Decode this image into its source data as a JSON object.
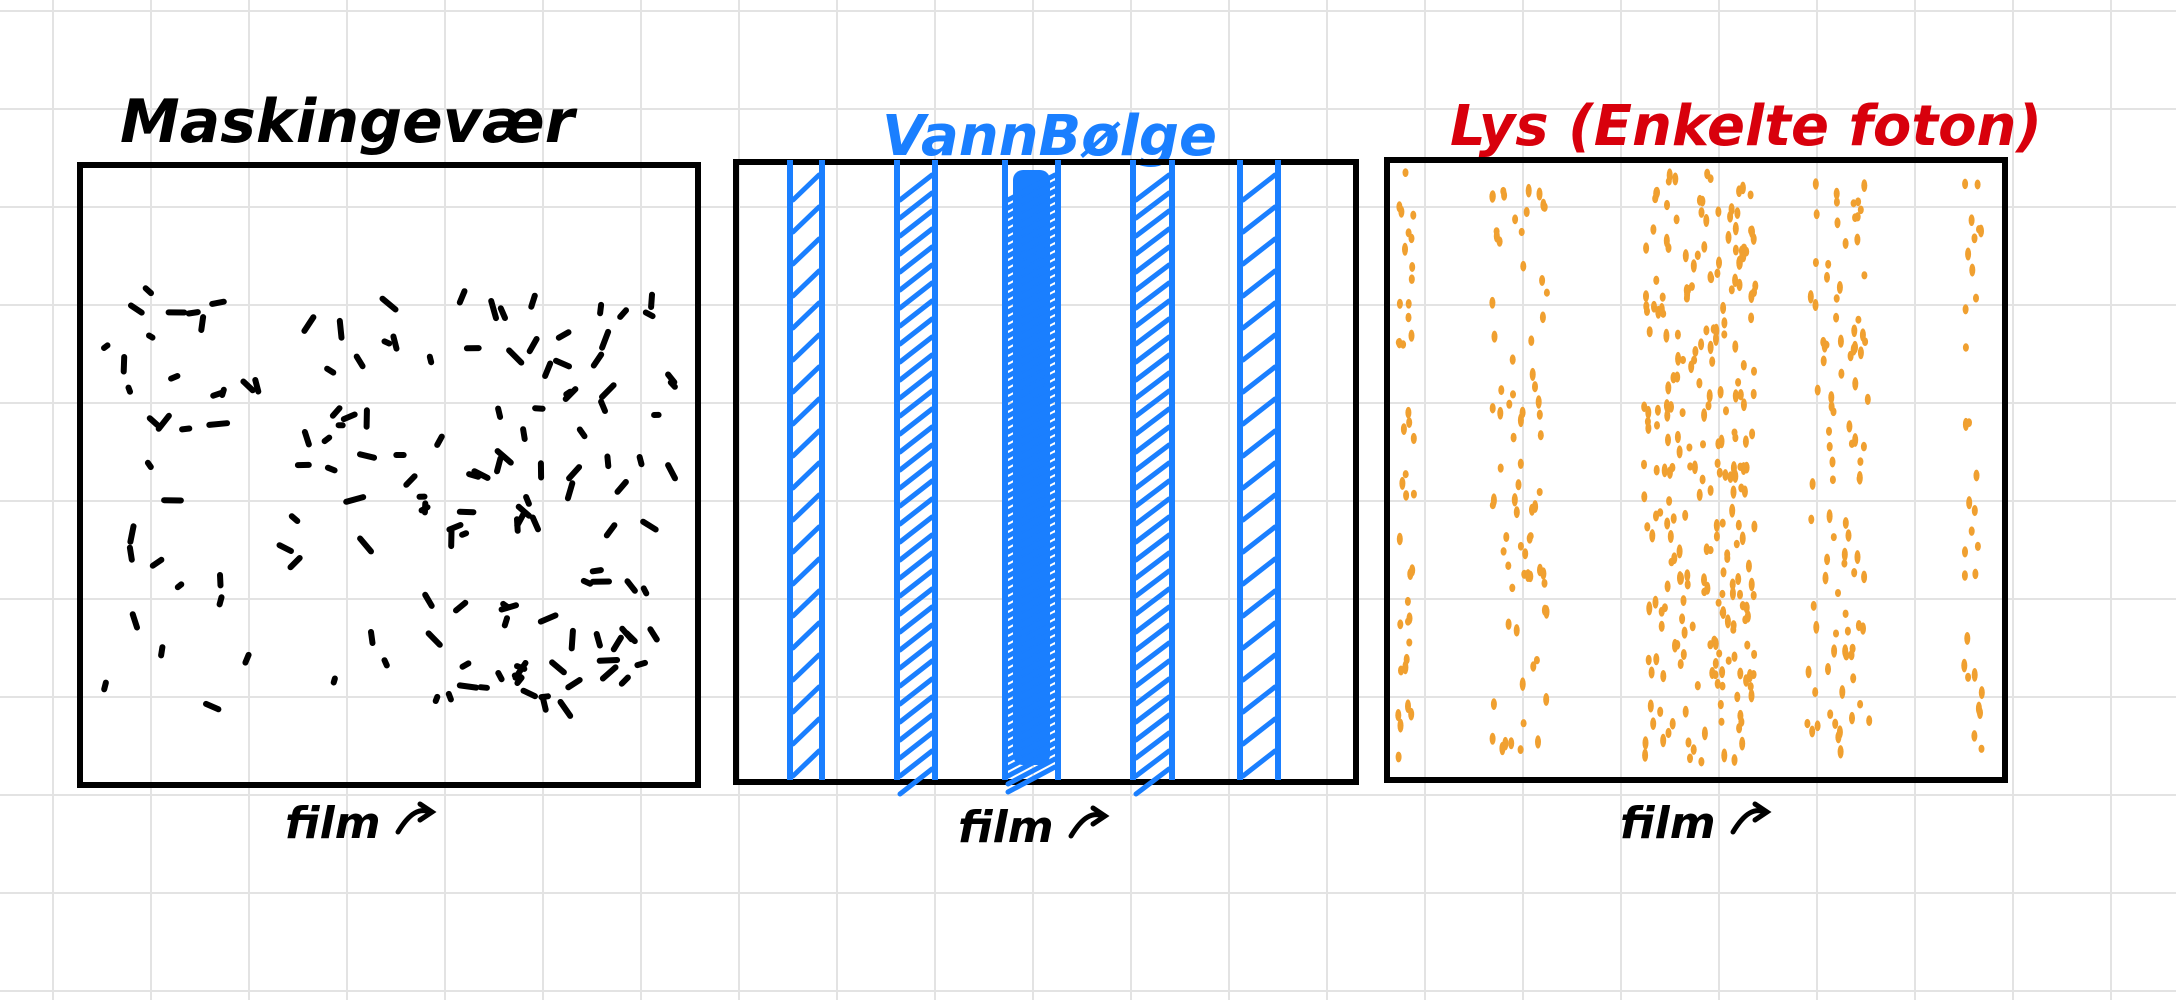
{
  "panels": [
    {
      "id": "machine-gun",
      "title": "Maskingevær",
      "title_color": "#000000",
      "caption": "film",
      "mark_color": "#000000"
    },
    {
      "id": "water-wave",
      "title": "VannBølge",
      "title_color": "#1a7fff",
      "caption": "film",
      "mark_color": "#1a7fff"
    },
    {
      "id": "light-photons",
      "title": "Lys (Enkelte foton)",
      "title_color": "#d8000c",
      "caption": "film",
      "mark_color": "#f0a030"
    }
  ],
  "colors": {
    "frame": "#000000",
    "grid": "#e3e3e3",
    "wave": "#1a7fff",
    "photon": "#f0a030",
    "bullet": "#000000"
  }
}
